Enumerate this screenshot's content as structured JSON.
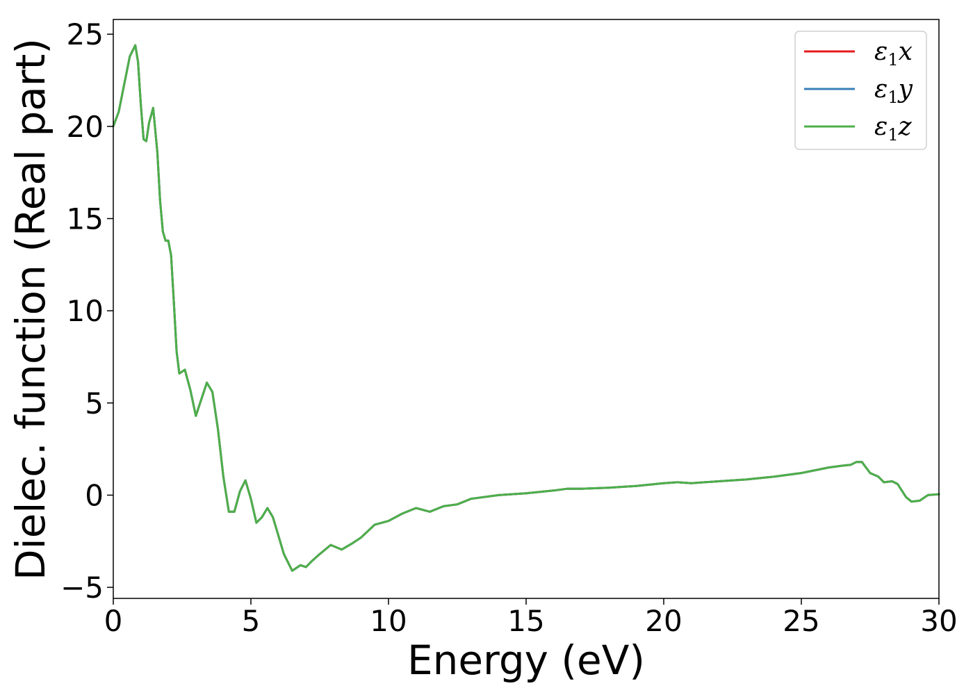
{
  "chart_data": {
    "type": "line",
    "xlabel": "Energy (eV)",
    "ylabel": "Dielec. function (Real part)",
    "xlim": [
      0,
      30
    ],
    "ylim": [
      -5.6,
      25.8
    ],
    "xticks": [
      0,
      5,
      10,
      15,
      20,
      25,
      30
    ],
    "yticks": [
      -5,
      0,
      5,
      10,
      15,
      20,
      25
    ],
    "xtick_labels": [
      "0",
      "5",
      "10",
      "15",
      "20",
      "25",
      "30"
    ],
    "ytick_labels": [
      "−5",
      "0",
      "5",
      "10",
      "15",
      "20",
      "25"
    ],
    "grid": false,
    "legend_position": "top-right",
    "x": [
      0,
      0.2,
      0.4,
      0.6,
      0.8,
      0.9,
      1.0,
      1.1,
      1.2,
      1.3,
      1.45,
      1.6,
      1.7,
      1.8,
      1.9,
      2.0,
      2.1,
      2.2,
      2.3,
      2.4,
      2.5,
      2.6,
      2.8,
      3.0,
      3.2,
      3.4,
      3.6,
      3.8,
      4.0,
      4.2,
      4.4,
      4.6,
      4.8,
      5.0,
      5.2,
      5.4,
      5.6,
      5.8,
      6.0,
      6.2,
      6.5,
      6.8,
      7.0,
      7.2,
      7.5,
      7.9,
      8.3,
      8.7,
      9.0,
      9.5,
      10.0,
      10.5,
      11.0,
      11.5,
      12.0,
      12.5,
      13.0,
      14.0,
      15.0,
      16.0,
      16.5,
      17.0,
      18.0,
      19.0,
      20.0,
      20.5,
      21.0,
      22.0,
      23.0,
      24.0,
      25.0,
      26.0,
      26.5,
      26.8,
      27.0,
      27.2,
      27.5,
      27.8,
      28.0,
      28.3,
      28.5,
      28.8,
      29.0,
      29.3,
      29.6,
      30.0
    ],
    "series": [
      {
        "name": "x",
        "color": "#e41a1c",
        "values": [
          20.0,
          20.8,
          22.3,
          23.8,
          24.4,
          23.5,
          21.2,
          19.3,
          19.2,
          20.2,
          21.0,
          18.6,
          16.0,
          14.3,
          13.8,
          13.8,
          13.0,
          10.5,
          7.8,
          6.6,
          6.7,
          6.8,
          5.7,
          4.3,
          5.2,
          6.1,
          5.6,
          3.6,
          1.0,
          -0.9,
          -0.9,
          0.2,
          0.8,
          -0.2,
          -1.5,
          -1.2,
          -0.7,
          -1.2,
          -2.2,
          -3.2,
          -4.1,
          -3.8,
          -3.9,
          -3.6,
          -3.2,
          -2.7,
          -2.95,
          -2.6,
          -2.3,
          -1.6,
          -1.4,
          -1.0,
          -0.7,
          -0.9,
          -0.6,
          -0.5,
          -0.2,
          0.0,
          0.1,
          0.25,
          0.35,
          0.35,
          0.4,
          0.5,
          0.65,
          0.7,
          0.65,
          0.75,
          0.85,
          1.0,
          1.2,
          1.5,
          1.6,
          1.65,
          1.8,
          1.8,
          1.2,
          1.0,
          0.7,
          0.75,
          0.6,
          -0.1,
          -0.35,
          -0.3,
          0.0,
          0.05
        ]
      },
      {
        "name": "y",
        "color": "#377eb8",
        "values": [
          20.0,
          20.8,
          22.3,
          23.8,
          24.4,
          23.5,
          21.2,
          19.3,
          19.2,
          20.2,
          21.0,
          18.6,
          16.0,
          14.3,
          13.8,
          13.8,
          13.0,
          10.5,
          7.8,
          6.6,
          6.7,
          6.8,
          5.7,
          4.3,
          5.2,
          6.1,
          5.6,
          3.6,
          1.0,
          -0.9,
          -0.9,
          0.2,
          0.8,
          -0.2,
          -1.5,
          -1.2,
          -0.7,
          -1.2,
          -2.2,
          -3.2,
          -4.1,
          -3.8,
          -3.9,
          -3.6,
          -3.2,
          -2.7,
          -2.95,
          -2.6,
          -2.3,
          -1.6,
          -1.4,
          -1.0,
          -0.7,
          -0.9,
          -0.6,
          -0.5,
          -0.2,
          0.0,
          0.1,
          0.25,
          0.35,
          0.35,
          0.4,
          0.5,
          0.65,
          0.7,
          0.65,
          0.75,
          0.85,
          1.0,
          1.2,
          1.5,
          1.6,
          1.65,
          1.8,
          1.8,
          1.2,
          1.0,
          0.7,
          0.75,
          0.6,
          -0.1,
          -0.35,
          -0.3,
          0.0,
          0.05
        ]
      },
      {
        "name": "z",
        "color": "#4daf4a",
        "values": [
          20.0,
          20.8,
          22.3,
          23.8,
          24.4,
          23.5,
          21.2,
          19.3,
          19.2,
          20.2,
          21.0,
          18.6,
          16.0,
          14.3,
          13.8,
          13.8,
          13.0,
          10.5,
          7.8,
          6.6,
          6.7,
          6.8,
          5.7,
          4.3,
          5.2,
          6.1,
          5.6,
          3.6,
          1.0,
          -0.9,
          -0.9,
          0.2,
          0.8,
          -0.2,
          -1.5,
          -1.2,
          -0.7,
          -1.2,
          -2.2,
          -3.2,
          -4.1,
          -3.8,
          -3.9,
          -3.6,
          -3.2,
          -2.7,
          -2.95,
          -2.6,
          -2.3,
          -1.6,
          -1.4,
          -1.0,
          -0.7,
          -0.9,
          -0.6,
          -0.5,
          -0.2,
          0.0,
          0.1,
          0.25,
          0.35,
          0.35,
          0.4,
          0.5,
          0.65,
          0.7,
          0.65,
          0.75,
          0.85,
          1.0,
          1.2,
          1.5,
          1.6,
          1.65,
          1.8,
          1.8,
          1.2,
          1.0,
          0.7,
          0.75,
          0.6,
          -0.1,
          -0.35,
          -0.3,
          0.0,
          0.05
        ]
      }
    ],
    "legend": [
      {
        "symbol": "ε",
        "sub": "1",
        "var": "x",
        "color": "#e41a1c"
      },
      {
        "symbol": "ε",
        "sub": "1",
        "var": "y",
        "color": "#377eb8"
      },
      {
        "symbol": "ε",
        "sub": "1",
        "var": "z",
        "color": "#4daf4a"
      }
    ]
  }
}
